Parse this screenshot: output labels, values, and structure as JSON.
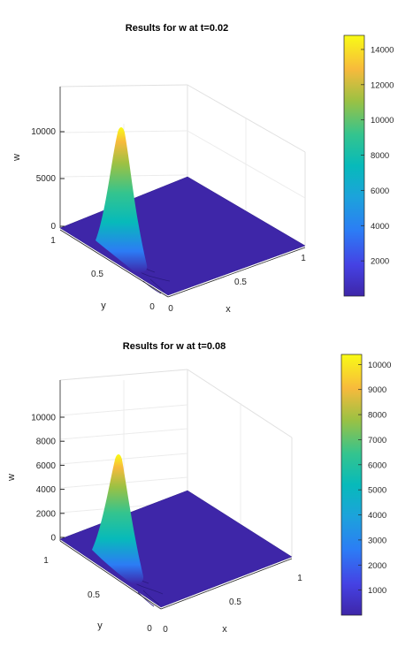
{
  "chart_data": [
    {
      "type": "surface",
      "title": "Results for w at t=0.02",
      "xlabel": "x",
      "ylabel": "y",
      "zlabel": "w",
      "xlim": [
        0,
        1
      ],
      "ylim": [
        0,
        1
      ],
      "zlim": [
        0,
        14000
      ],
      "x_ticks": [
        {
          "v": 0,
          "label": "0"
        },
        {
          "v": 0.5,
          "label": "0.5"
        },
        {
          "v": 1,
          "label": "1"
        }
      ],
      "y_ticks": [
        {
          "v": 0,
          "label": "0"
        },
        {
          "v": 0.5,
          "label": "0.5"
        },
        {
          "v": 1,
          "label": "1"
        }
      ],
      "z_ticks": [
        {
          "v": 0,
          "label": "0"
        },
        {
          "v": 5000,
          "label": "5000"
        },
        {
          "v": 10000,
          "label": "10000"
        }
      ],
      "peak": {
        "x": 0,
        "y": 0.5,
        "value": 11000
      },
      "colormap": "parula",
      "colorbar": {
        "range": [
          0,
          14800
        ],
        "ticks": [
          {
            "v": 2000,
            "label": "2000"
          },
          {
            "v": 4000,
            "label": "4000"
          },
          {
            "v": 6000,
            "label": "6000"
          },
          {
            "v": 8000,
            "label": "8000"
          },
          {
            "v": 10000,
            "label": "10000"
          },
          {
            "v": 12000,
            "label": "12000"
          },
          {
            "v": 14000,
            "label": "14000"
          }
        ]
      }
    },
    {
      "type": "surface",
      "title": "Results for w at t=0.08",
      "xlabel": "x",
      "ylabel": "y",
      "zlabel": "w",
      "xlim": [
        0,
        1
      ],
      "ylim": [
        0,
        1
      ],
      "zlim": [
        -500,
        11000
      ],
      "x_ticks": [
        {
          "v": 0,
          "label": "0"
        },
        {
          "v": 0.5,
          "label": "0.5"
        },
        {
          "v": 1,
          "label": "1"
        }
      ],
      "y_ticks": [
        {
          "v": 0,
          "label": "0"
        },
        {
          "v": 0.5,
          "label": "0.5"
        },
        {
          "v": 1,
          "label": "1"
        }
      ],
      "z_ticks": [
        {
          "v": 0,
          "label": "0"
        },
        {
          "v": 2000,
          "label": "2000"
        },
        {
          "v": 4000,
          "label": "4000"
        },
        {
          "v": 6000,
          "label": "6000"
        },
        {
          "v": 8000,
          "label": "8000"
        },
        {
          "v": 10000,
          "label": "10000"
        }
      ],
      "peak": {
        "x": 0,
        "y": 0.5,
        "value": 7000
      },
      "colormap": "parula",
      "colorbar": {
        "range": [
          0,
          10400
        ],
        "ticks": [
          {
            "v": 1000,
            "label": "1000"
          },
          {
            "v": 2000,
            "label": "2000"
          },
          {
            "v": 3000,
            "label": "3000"
          },
          {
            "v": 4000,
            "label": "4000"
          },
          {
            "v": 5000,
            "label": "5000"
          },
          {
            "v": 6000,
            "label": "6000"
          },
          {
            "v": 7000,
            "label": "7000"
          },
          {
            "v": 8000,
            "label": "8000"
          },
          {
            "v": 9000,
            "label": "9000"
          },
          {
            "v": 10000,
            "label": "10000"
          }
        ]
      }
    }
  ]
}
